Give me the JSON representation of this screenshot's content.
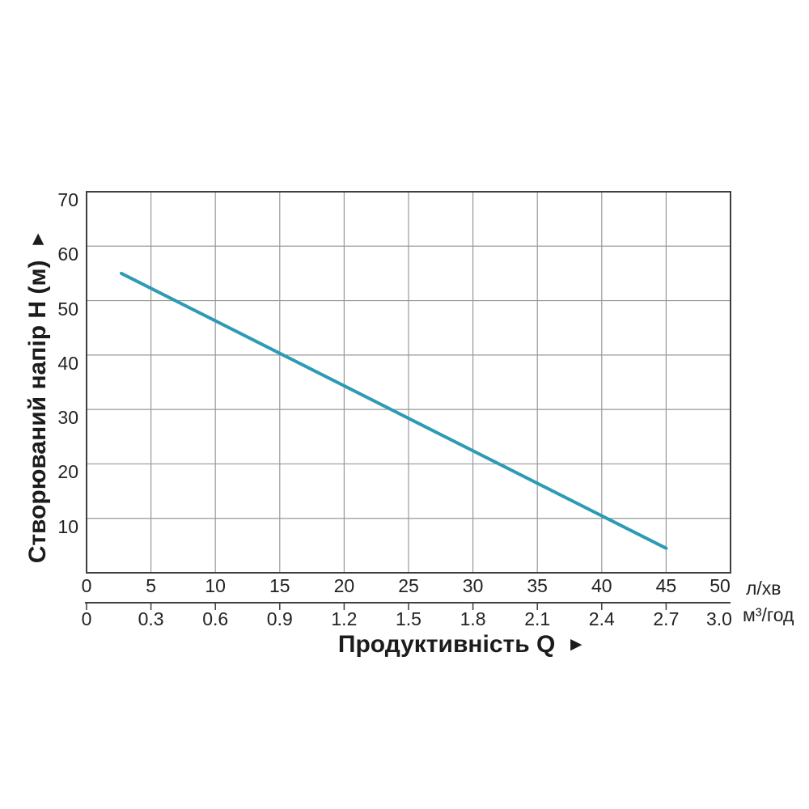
{
  "chart_data": {
    "type": "line",
    "title": "",
    "x_axis": {
      "label": "Продуктивність  Q",
      "arrow": "►",
      "primary_unit": "л/хв",
      "secondary_unit": "м³/год",
      "primary_ticks": [
        "0",
        "5",
        "10",
        "15",
        "20",
        "25",
        "30",
        "35",
        "40",
        "45",
        "50"
      ],
      "secondary_ticks": [
        "0",
        "0.3",
        "0.6",
        "0.9",
        "1.2",
        "1.5",
        "1.8",
        "2.1",
        "2.4",
        "2.7",
        "3.0"
      ],
      "range_primary_l_min": [
        0,
        50
      ],
      "range_secondary_m3_h": [
        0,
        3.0
      ],
      "grid_step_l_min": 5
    },
    "y_axis": {
      "label": "Створюваний напір H (м)",
      "arrow": "►",
      "ticks": [
        "70",
        "60",
        "50",
        "40",
        "30",
        "20",
        "10"
      ],
      "range_m": [
        0,
        70
      ],
      "grid_step_m": 10
    },
    "grid": {
      "show": true,
      "line_color": "#999999",
      "border_color": "#3f3f3f"
    },
    "series": [
      {
        "name": "pump-head-curve",
        "color": "#2D9AB6",
        "points_l_min_vs_m": [
          [
            2.7,
            55.0
          ],
          [
            45.0,
            4.5
          ]
        ]
      }
    ]
  }
}
